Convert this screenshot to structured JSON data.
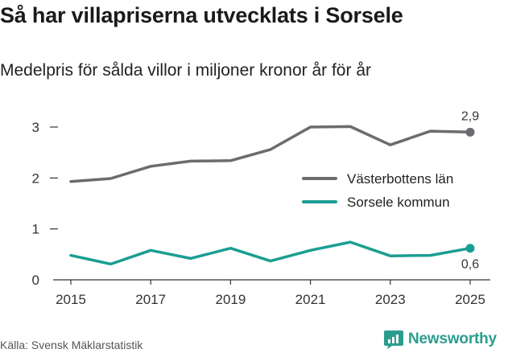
{
  "title": "Så har villapriserna utvecklats i Sorsele",
  "subtitle": "Medelpris för sålda villor i miljoner kronor år för år",
  "source": "Källa: Svensk Mäklarstatistik",
  "brand": "Newsworthy",
  "chart_data": {
    "type": "line",
    "x": [
      2015,
      2016,
      2017,
      2018,
      2019,
      2020,
      2021,
      2022,
      2023,
      2024,
      2025
    ],
    "xticks": [
      "2015",
      "2017",
      "2019",
      "2021",
      "2023",
      "2025"
    ],
    "yticks": [
      "0",
      "1",
      "2",
      "3"
    ],
    "xlim": [
      2015,
      2025
    ],
    "ylim": [
      0,
      3
    ],
    "xlabel": "",
    "ylabel": "",
    "grid": false,
    "legend_position": "right",
    "series": [
      {
        "name": "Västerbottens län",
        "color": "#6b6b70",
        "values": [
          1.93,
          1.99,
          2.23,
          2.33,
          2.34,
          2.56,
          3.0,
          3.01,
          2.65,
          2.92,
          2.9
        ],
        "end_label": "2,9"
      },
      {
        "name": "Sorsele kommun",
        "color": "#1a9e93",
        "values": [
          0.48,
          0.31,
          0.58,
          0.42,
          0.62,
          0.37,
          0.58,
          0.74,
          0.47,
          0.48,
          0.62
        ],
        "end_label": "0,6"
      }
    ]
  }
}
